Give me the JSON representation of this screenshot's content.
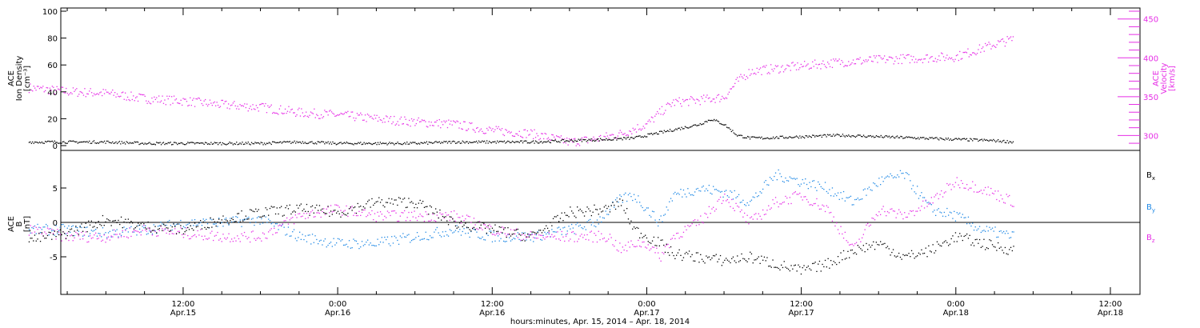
{
  "colors": {
    "density": "#000000",
    "velocity": "#e62ee6",
    "bx": "#000000",
    "by": "#1e88e5",
    "bz": "#e62ee6",
    "axis": "#000000"
  },
  "chart_data": [
    {
      "type": "scatter",
      "panel": "top",
      "ylabel_lines": [
        "ACE",
        "Ion Density",
        "[cm⁻³]"
      ],
      "y2label_lines": [
        "ACE",
        "Velocity",
        "[km/s]"
      ],
      "ylim": [
        0,
        100
      ],
      "yticks": [
        0,
        20,
        40,
        60,
        80,
        100
      ],
      "y2lim": [
        287,
        460
      ],
      "y2ticks": [
        300,
        350,
        400,
        450
      ],
      "series": [
        {
          "key": "density",
          "axis": "left",
          "x_hours": [
            0,
            3,
            6,
            9,
            12,
            15,
            18,
            21,
            24,
            27,
            30,
            33,
            36,
            39,
            42,
            45,
            47,
            48,
            49,
            50,
            51,
            52,
            53,
            54,
            55,
            56,
            57,
            60,
            63,
            66,
            69,
            72,
            75,
            76.5
          ],
          "values": [
            3,
            3,
            3,
            2,
            2,
            2,
            2,
            3,
            2,
            2,
            2,
            3,
            3,
            3,
            4,
            5,
            6,
            8,
            10,
            12,
            14,
            16,
            20,
            16,
            8,
            6,
            6,
            7,
            8,
            7,
            6,
            5,
            4,
            3
          ]
        },
        {
          "key": "velocity",
          "axis": "right",
          "x_hours": [
            0,
            3,
            6,
            9,
            12,
            15,
            18,
            21,
            24,
            27,
            30,
            33,
            36,
            39,
            42,
            44,
            46,
            48,
            49,
            50,
            52,
            54,
            55,
            56,
            57,
            60,
            63,
            66,
            69,
            72,
            75,
            76.5
          ],
          "values": [
            362,
            357,
            355,
            348,
            345,
            340,
            337,
            330,
            327,
            322,
            318,
            315,
            307,
            303,
            292,
            296,
            303,
            315,
            330,
            343,
            346,
            350,
            370,
            383,
            385,
            390,
            395,
            398,
            400,
            402,
            418,
            425
          ]
        }
      ]
    },
    {
      "type": "scatter",
      "panel": "bottom",
      "ylabel_lines": [
        "ACE",
        "B",
        "[nT]"
      ],
      "ylim": [
        -10,
        10
      ],
      "yticks": [
        -5,
        0,
        5
      ],
      "series": [
        {
          "key": "bx",
          "label": "B",
          "sub": "x",
          "x_hours": [
            0,
            3,
            6,
            9,
            12,
            15,
            18,
            21,
            24,
            27,
            30,
            33,
            36,
            39,
            42,
            45,
            46,
            47,
            48,
            49,
            50,
            52,
            54,
            56,
            58,
            60,
            62,
            64,
            66,
            68,
            70,
            72,
            74,
            76.5
          ],
          "values": [
            -2.5,
            -1.5,
            0.5,
            -0.5,
            -1,
            0.5,
            1.5,
            2,
            1.5,
            3,
            3,
            0,
            -1,
            -2,
            1.5,
            2,
            3,
            -1,
            -2,
            -3,
            -4.5,
            -5,
            -5.5,
            -5,
            -6,
            -7,
            -6,
            -4,
            -3,
            -5,
            -4,
            -2,
            -3,
            -4
          ]
        },
        {
          "key": "by",
          "label": "B",
          "sub": "y",
          "x_hours": [
            0,
            3,
            6,
            9,
            12,
            15,
            18,
            21,
            24,
            27,
            30,
            33,
            36,
            39,
            42,
            44,
            46,
            47,
            48,
            49,
            50,
            52,
            54,
            56,
            58,
            60,
            62,
            64,
            66,
            68,
            70,
            72,
            74,
            76.5
          ],
          "values": [
            -1,
            -1,
            -1.5,
            -1,
            0,
            0,
            0.5,
            -2,
            -3,
            -3,
            -2,
            -1,
            -2,
            -2,
            -1,
            0,
            3.5,
            4,
            2,
            0,
            4,
            5,
            4.5,
            3,
            7,
            6,
            5,
            3,
            6,
            7,
            2,
            1,
            -1,
            -2
          ]
        },
        {
          "key": "bz",
          "label": "B",
          "sub": "z",
          "x_hours": [
            0,
            3,
            6,
            9,
            12,
            15,
            18,
            21,
            24,
            27,
            30,
            33,
            36,
            39,
            42,
            45,
            46,
            47,
            48,
            49,
            50,
            52,
            53,
            54,
            56,
            58,
            60,
            62,
            64,
            66,
            68,
            70,
            72,
            74,
            76.5
          ],
          "values": [
            -1,
            -2,
            -2,
            -1,
            -1.5,
            -2,
            -2,
            1,
            2,
            1,
            1,
            1,
            -1,
            -2,
            -2,
            -2,
            -4,
            -3,
            -3,
            -5,
            -2,
            0,
            2,
            4,
            0,
            3,
            4,
            2,
            -4,
            2,
            1,
            3,
            6,
            5,
            3
          ]
        }
      ]
    }
  ],
  "time_axis": {
    "start_label": "Apr. 15, 2014",
    "tick_hours": [
      12,
      24,
      36,
      48,
      60,
      72,
      84
    ],
    "tick_labels": [
      [
        "12:00",
        "Apr.15"
      ],
      [
        "0:00",
        "Apr.16"
      ],
      [
        "12:00",
        "Apr.16"
      ],
      [
        "0:00",
        "Apr.17"
      ],
      [
        "12:00",
        "Apr.17"
      ],
      [
        "0:00",
        "Apr.18"
      ],
      [
        "12:00",
        "Apr.18"
      ]
    ],
    "xlim_hours": [
      2.5,
      86.3
    ],
    "title": "hours:minutes, Apr. 15, 2014 – Apr. 18, 2014"
  }
}
